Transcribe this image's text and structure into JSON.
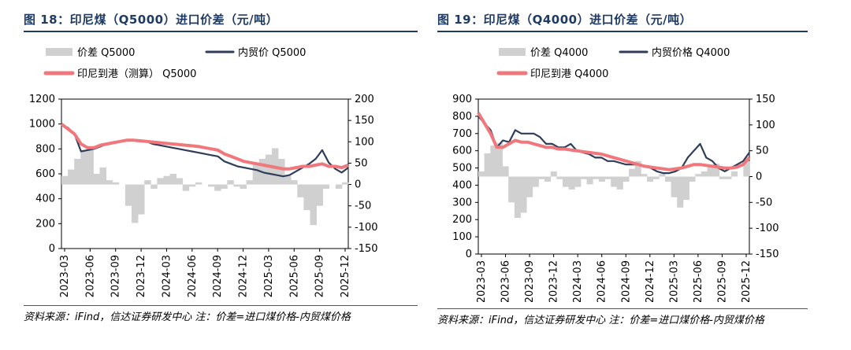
{
  "chart_data": [
    {
      "type": "line",
      "title": "图 18：印尼煤（Q5000）进口价差（元/吨）",
      "x_labels": [
        "2023-03",
        "2023-06",
        "2023-09",
        "2023-12",
        "2024-03",
        "2024-06",
        "2024-09",
        "2024-12",
        "2025-03",
        "2025-06",
        "2025-09",
        "2025-12"
      ],
      "y_left": {
        "min": 0,
        "max": 1200,
        "ticks": [
          "0",
          "200",
          "400",
          "600",
          "800",
          "1000",
          "1200"
        ]
      },
      "y_right": {
        "min": -150,
        "max": 200,
        "ticks": [
          "-150",
          "-100",
          "-50",
          "0",
          "50",
          "100",
          "150",
          "200"
        ]
      },
      "series": [
        {
          "name": "价差 Q5000",
          "kind": "area",
          "axis": "right",
          "color": "#d0d0d0",
          "values": [
            20,
            35,
            60,
            80,
            85,
            25,
            40,
            10,
            5,
            0,
            -50,
            -90,
            -70,
            10,
            -10,
            15,
            20,
            25,
            15,
            -15,
            -5,
            5,
            0,
            -5,
            -15,
            -10,
            10,
            -5,
            -10,
            10,
            50,
            60,
            70,
            85,
            60,
            20,
            10,
            -30,
            -60,
            -95,
            -50,
            -10,
            0,
            -10,
            5
          ]
        },
        {
          "name": "内贸价 Q5000",
          "kind": "line",
          "axis": "left",
          "color": "#2f3c5a",
          "values": [
            990,
            970,
            920,
            780,
            790,
            800,
            820,
            840,
            850,
            860,
            870,
            875,
            870,
            860,
            840,
            830,
            820,
            810,
            800,
            790,
            780,
            770,
            760,
            750,
            740,
            700,
            680,
            660,
            650,
            640,
            630,
            610,
            600,
            590,
            580,
            590,
            620,
            650,
            680,
            720,
            790,
            690,
            640,
            610,
            650
          ]
        },
        {
          "name": "印尼到港（测算） Q5000",
          "kind": "line",
          "axis": "left",
          "color": "#f0787c",
          "values": [
            1000,
            960,
            920,
            840,
            810,
            810,
            830,
            840,
            850,
            860,
            870,
            870,
            865,
            860,
            855,
            850,
            845,
            840,
            835,
            830,
            825,
            820,
            810,
            800,
            790,
            760,
            740,
            720,
            700,
            690,
            680,
            670,
            660,
            650,
            640,
            640,
            650,
            660,
            660,
            670,
            680,
            660,
            660,
            650,
            670
          ]
        }
      ]
    },
    {
      "type": "line",
      "title": "图 19：印尼煤（Q4000）进口价差（元/吨）",
      "x_labels": [
        "2023-03",
        "2023-06",
        "2023-09",
        "2023-12",
        "2024-03",
        "2024-06",
        "2024-09",
        "2024-12",
        "2025-03",
        "2025-06",
        "2025-09",
        "2025-12"
      ],
      "y_left": {
        "min": 0,
        "max": 900,
        "ticks": [
          "0",
          "100",
          "200",
          "300",
          "400",
          "500",
          "600",
          "700",
          "800",
          "900"
        ]
      },
      "y_right": {
        "min": -150,
        "max": 150,
        "ticks": [
          "-150",
          "-100",
          "-50",
          "0",
          "50",
          "100",
          "150"
        ]
      },
      "series": [
        {
          "name": "价差 Q4000",
          "kind": "area",
          "axis": "right",
          "color": "#d0d0d0",
          "values": [
            10,
            45,
            60,
            65,
            20,
            -50,
            -80,
            -70,
            -40,
            -20,
            -5,
            -10,
            10,
            -5,
            -20,
            -25,
            -20,
            -5,
            -15,
            -5,
            -10,
            -5,
            -20,
            -25,
            -10,
            15,
            30,
            5,
            -10,
            -5,
            5,
            -10,
            -40,
            -60,
            -45,
            -10,
            5,
            10,
            20,
            25,
            -5,
            -5,
            10,
            0,
            30
          ]
        },
        {
          "name": "内贸价格 Q4000",
          "kind": "line",
          "axis": "left",
          "color": "#2f3c5a",
          "values": [
            800,
            760,
            720,
            620,
            660,
            650,
            720,
            700,
            700,
            700,
            680,
            640,
            640,
            620,
            620,
            640,
            600,
            590,
            580,
            560,
            560,
            540,
            540,
            530,
            520,
            520,
            520,
            510,
            500,
            480,
            470,
            470,
            480,
            500,
            560,
            600,
            640,
            560,
            540,
            500,
            480,
            500,
            520,
            540,
            590
          ]
        },
        {
          "name": "印尼到港 Q4000",
          "kind": "line",
          "axis": "left",
          "color": "#f0787c",
          "values": [
            820,
            760,
            700,
            620,
            620,
            640,
            660,
            650,
            650,
            640,
            630,
            620,
            620,
            610,
            610,
            605,
            600,
            595,
            590,
            585,
            580,
            570,
            560,
            550,
            540,
            530,
            520,
            510,
            505,
            500,
            495,
            490,
            495,
            500,
            510,
            520,
            520,
            515,
            510,
            505,
            500,
            500,
            505,
            520,
            560
          ]
        }
      ]
    }
  ],
  "left": {
    "title": "图 18：印尼煤（Q5000）进口价差（元/吨）",
    "legend": [
      "价差 Q5000",
      "内贸价 Q5000",
      "印尼到港（测算） Q5000"
    ],
    "source": "资料来源：iFind，信达证券研发中心 注：价差=进口煤价格-内贸煤价格"
  },
  "right": {
    "title": "图 19：印尼煤（Q4000）进口价差（元/吨）",
    "legend": [
      "价差 Q4000",
      "内贸价格 Q4000",
      "印尼到港 Q4000"
    ],
    "source": "资料来源：iFind，信达证券研发中心 注：价差=进口煤价格-内贸煤价格"
  }
}
